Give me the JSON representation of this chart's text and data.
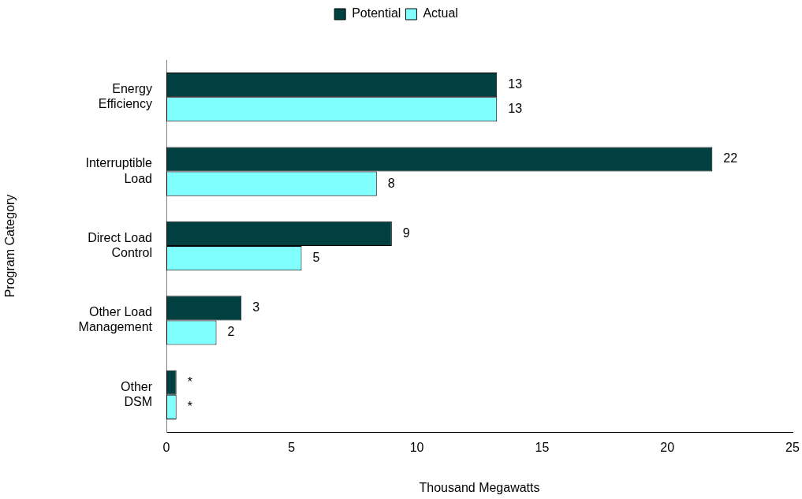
{
  "chart_data": {
    "type": "bar",
    "orientation": "horizontal",
    "categories": [
      "Energy\nEfficiency",
      "Interruptible\nLoad",
      "Direct Load\nControl",
      "Other Load\nManagement",
      "Other\nDSM"
    ],
    "series": [
      {
        "name": "Potential",
        "color": "#004040",
        "values": [
          13.2,
          21.8,
          9.0,
          3.0,
          0.4
        ],
        "value_labels": [
          "13",
          "22",
          "9",
          "3",
          "*"
        ]
      },
      {
        "name": "Actual",
        "color": "#80ffff",
        "values": [
          13.2,
          8.4,
          5.4,
          2.0,
          0.4
        ],
        "value_labels": [
          "13",
          "8",
          "5",
          "2",
          "*"
        ]
      }
    ],
    "xlim": [
      0,
      25
    ],
    "xticks": [
      0,
      5,
      10,
      15,
      20,
      25
    ],
    "xlabel": "Thousand Megawatts",
    "ylabel": "Program Category",
    "legend": "top",
    "grid": false
  }
}
